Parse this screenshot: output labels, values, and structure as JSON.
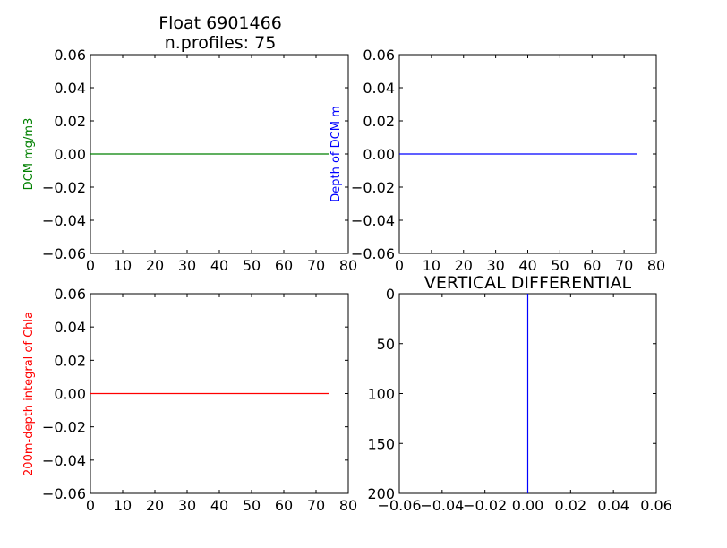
{
  "figure": {
    "title_line1": "Float 6901466",
    "title_line2": "n.profiles: 75"
  },
  "chart_data": [
    {
      "type": "line",
      "x": [
        0,
        74
      ],
      "series": [
        {
          "values": [
            0.0,
            0.0
          ],
          "color": "#008000"
        }
      ],
      "title": "",
      "xlabel": "",
      "ylabel": "DCM mg/m3",
      "ylabel_color": "#008000",
      "xlim": [
        0,
        80
      ],
      "ylim": [
        -0.06,
        0.06
      ],
      "xticks": [
        0,
        10,
        20,
        30,
        40,
        50,
        60,
        70,
        80
      ],
      "xtick_labels": [
        "0",
        "10",
        "20",
        "30",
        "40",
        "50",
        "60",
        "70",
        "80"
      ],
      "yticks": [
        0.06,
        0.04,
        0.02,
        0.0,
        -0.02,
        -0.04,
        -0.06
      ],
      "ytick_labels": [
        "0.06",
        "0.04",
        "0.02",
        "0.00",
        "−0.02",
        "−0.04",
        "−0.06"
      ],
      "grid": false
    },
    {
      "type": "line",
      "x": [
        0,
        74
      ],
      "series": [
        {
          "values": [
            0.0,
            0.0
          ],
          "color": "#0000ff"
        }
      ],
      "title": "",
      "xlabel": "",
      "ylabel": "Depth of DCM m",
      "ylabel_color": "#0000ff",
      "xlim": [
        0,
        80
      ],
      "ylim": [
        -0.06,
        0.06
      ],
      "xticks": [
        0,
        10,
        20,
        30,
        40,
        50,
        60,
        70,
        80
      ],
      "xtick_labels": [
        "0",
        "10",
        "20",
        "30",
        "40",
        "50",
        "60",
        "70",
        "80"
      ],
      "yticks": [
        0.06,
        0.04,
        0.02,
        0.0,
        -0.02,
        -0.04,
        -0.06
      ],
      "ytick_labels": [
        "0.06",
        "0.04",
        "0.02",
        "0.00",
        "−0.02",
        "−0.04",
        "−0.06"
      ],
      "grid": false
    },
    {
      "type": "line",
      "x": [
        0,
        74
      ],
      "series": [
        {
          "values": [
            0.0,
            0.0
          ],
          "color": "#ff0000"
        }
      ],
      "title": "",
      "xlabel": "",
      "ylabel": "200m-depth integral of Chla",
      "ylabel_color": "#ff0000",
      "xlim": [
        0,
        80
      ],
      "ylim": [
        -0.06,
        0.06
      ],
      "xticks": [
        0,
        10,
        20,
        30,
        40,
        50,
        60,
        70,
        80
      ],
      "xtick_labels": [
        "0",
        "10",
        "20",
        "30",
        "40",
        "50",
        "60",
        "70",
        "80"
      ],
      "yticks": [
        0.06,
        0.04,
        0.02,
        0.0,
        -0.02,
        -0.04,
        -0.06
      ],
      "ytick_labels": [
        "0.06",
        "0.04",
        "0.02",
        "0.00",
        "−0.02",
        "−0.04",
        "−0.06"
      ],
      "grid": false
    },
    {
      "type": "line",
      "x": [
        0.0,
        0.0
      ],
      "y": [
        0,
        200
      ],
      "series": [
        {
          "color": "#0000ff"
        }
      ],
      "title": "VERTICAL DIFFERENTIAL",
      "xlabel": "",
      "ylabel": "",
      "xlim": [
        -0.06,
        0.06
      ],
      "ylim": [
        200,
        0
      ],
      "y_inverted": true,
      "xticks": [
        -0.06,
        -0.04,
        -0.02,
        0.0,
        0.02,
        0.04,
        0.06
      ],
      "xtick_labels": [
        "−0.06",
        "−0.04",
        "−0.02",
        "0.00",
        "0.02",
        "0.04",
        "0.06"
      ],
      "yticks": [
        0,
        50,
        100,
        150,
        200
      ],
      "ytick_labels": [
        "0",
        "50",
        "100",
        "150",
        "200"
      ],
      "grid": false
    }
  ]
}
